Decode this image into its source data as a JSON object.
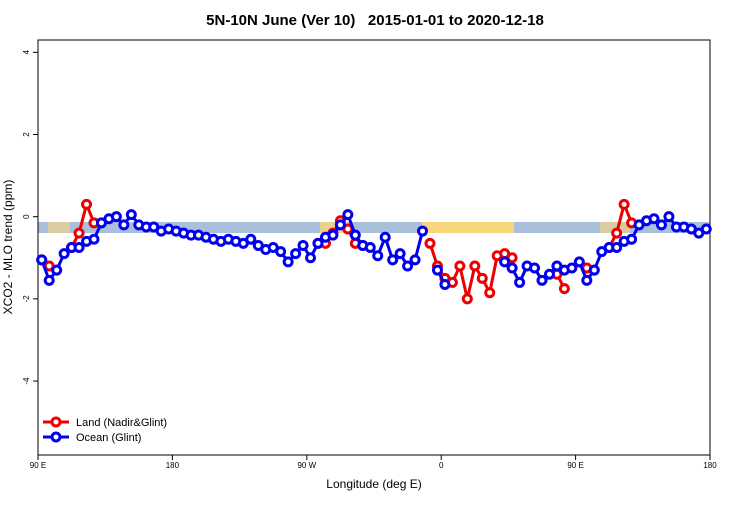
{
  "chart_data": {
    "type": "line",
    "title": "5N-10N June (Ver 10)   2015-01-01 to 2020-12-18",
    "x_label": "Longitude (deg E)",
    "y_label": "XCO2 - MLO trend (ppm)",
    "xlim": [
      90,
      540
    ],
    "ylim": [
      -5.8,
      4.3
    ],
    "xticks": [
      {
        "value": 90,
        "label": "90 E"
      },
      180,
      {
        "value": 270,
        "label": "90 W"
      },
      {
        "value": 360,
        "label": "0"
      },
      {
        "value": 450,
        "label": "90 E"
      },
      {
        "value": 540,
        "label": "180"
      }
    ],
    "yticks": [
      -4,
      -2,
      0,
      2,
      4
    ],
    "legend": "bottom-left",
    "x": [
      92.5,
      97.5,
      102.5,
      107.5,
      112.5,
      117.5,
      122.5,
      127.5,
      132.5,
      137.5,
      142.5,
      147.5,
      152.5,
      157.5,
      162.5,
      167.5,
      172.5,
      177.5,
      182.5,
      187.5,
      192.5,
      197.5,
      202.5,
      207.5,
      212.5,
      217.5,
      222.5,
      227.5,
      232.5,
      237.5,
      242.5,
      247.5,
      252.5,
      257.5,
      262.5,
      267.5,
      272.5,
      277.5,
      282.5,
      287.5,
      292.5,
      297.5,
      302.5,
      307.5,
      312.5,
      317.5,
      322.5,
      327.5,
      332.5,
      337.5,
      342.5,
      347.5,
      352.5,
      357.5,
      362.5,
      367.5,
      372.5,
      377.5,
      382.5,
      387.5,
      392.5,
      397.5,
      402.5,
      407.5,
      412.5,
      417.5,
      422.5,
      427.5,
      432.5,
      437.5,
      442.5,
      447.5,
      452.5,
      457.5,
      462.5,
      467.5,
      472.5,
      477.5,
      482.5,
      487.5,
      492.5,
      497.5,
      502.5,
      507.5,
      512.5,
      517.5,
      522.5,
      527.5,
      532.5,
      537.5
    ],
    "series": [
      {
        "name": "Land (Nadir&Glint)",
        "color": "#ee0000",
        "values": [
          -1.05,
          -1.2,
          -1.3,
          null,
          -0.75,
          -0.4,
          0.3,
          -0.15,
          null,
          null,
          null,
          null,
          null,
          null,
          null,
          null,
          null,
          null,
          null,
          null,
          null,
          null,
          null,
          null,
          null,
          null,
          null,
          null,
          null,
          null,
          null,
          null,
          null,
          null,
          null,
          null,
          null,
          -0.65,
          -0.65,
          -0.4,
          -0.1,
          -0.3,
          -0.65,
          -0.7,
          null,
          null,
          null,
          null,
          null,
          null,
          null,
          null,
          -0.65,
          -1.2,
          -1.5,
          -1.6,
          -1.2,
          -2.0,
          -1.2,
          -1.5,
          -1.85,
          -0.95,
          -0.9,
          -1.0,
          null,
          null,
          null,
          null,
          null,
          -1.4,
          -1.75,
          null,
          null,
          -1.25,
          -1.3,
          null,
          -0.75,
          -0.4,
          0.3,
          -0.15,
          null,
          null,
          null,
          null,
          null,
          null,
          null,
          null,
          null,
          null
        ]
      },
      {
        "name": "Ocean (Glint)",
        "color": "#0000ee",
        "values": [
          -1.05,
          -1.55,
          -1.3,
          -0.9,
          -0.75,
          -0.75,
          -0.6,
          -0.55,
          -0.15,
          -0.05,
          0.0,
          -0.2,
          0.05,
          -0.2,
          -0.25,
          -0.25,
          -0.35,
          -0.3,
          -0.35,
          -0.4,
          -0.45,
          -0.45,
          -0.5,
          -0.55,
          -0.6,
          -0.55,
          -0.6,
          -0.65,
          -0.55,
          -0.7,
          -0.8,
          -0.75,
          -0.85,
          -1.1,
          -0.9,
          -0.7,
          -1.0,
          -0.65,
          -0.5,
          -0.45,
          -0.2,
          0.05,
          -0.45,
          -0.7,
          -0.75,
          -0.95,
          -0.5,
          -1.05,
          -0.9,
          -1.2,
          -1.05,
          -0.35,
          null,
          -1.3,
          -1.65,
          null,
          null,
          null,
          null,
          null,
          null,
          null,
          -1.1,
          -1.25,
          -1.6,
          -1.2,
          -1.25,
          -1.55,
          -1.4,
          -1.2,
          -1.3,
          -1.25,
          -1.1,
          -1.55,
          -1.3,
          -0.85,
          -0.75,
          -0.75,
          -0.6,
          -0.55,
          -0.2,
          -0.1,
          -0.05,
          -0.2,
          0.0,
          -0.25,
          -0.25,
          -0.3,
          -0.4,
          -0.3
        ]
      }
    ]
  }
}
